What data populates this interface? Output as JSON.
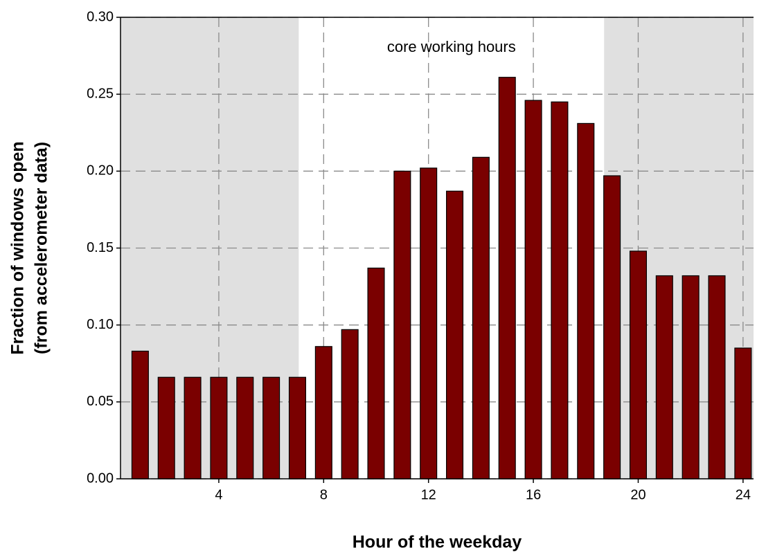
{
  "chart_data": {
    "type": "bar",
    "ylabel": [
      "Fraction of windows open",
      "(from accelerometer data)"
    ],
    "xlabel": "Hour of the weekday",
    "annotation": "core working hours",
    "x": [
      1,
      2,
      3,
      4,
      5,
      6,
      7,
      8,
      9,
      10,
      11,
      12,
      13,
      14,
      15,
      16,
      17,
      18,
      19,
      20,
      21,
      22,
      23,
      24
    ],
    "values": [
      0.083,
      0.066,
      0.066,
      0.066,
      0.066,
      0.066,
      0.066,
      0.086,
      0.097,
      0.137,
      0.2,
      0.202,
      0.187,
      0.209,
      0.261,
      0.246,
      0.245,
      0.231,
      0.197,
      0.148,
      0.132,
      0.132,
      0.132,
      0.085
    ],
    "color": "#7a0000",
    "shaded_spans": [
      [
        0.25,
        7.05
      ],
      [
        18.7,
        24.4
      ]
    ],
    "shade_color": "#e0e0e0",
    "xlim": [
      0.25,
      24.4
    ],
    "xticks": [
      4,
      8,
      12,
      16,
      20,
      24
    ],
    "ylim": [
      0,
      0.3
    ],
    "yticks": [
      {
        "value": 0,
        "label": "0.00"
      },
      {
        "value": 0.05,
        "label": "0.05"
      },
      {
        "value": 0.1,
        "label": "0.10"
      },
      {
        "value": 0.15,
        "label": "0.15"
      },
      {
        "value": 0.2,
        "label": "0.20"
      },
      {
        "value": 0.25,
        "label": "0.25"
      },
      {
        "value": 0.3,
        "label": "0.30"
      }
    ],
    "grid": true
  }
}
